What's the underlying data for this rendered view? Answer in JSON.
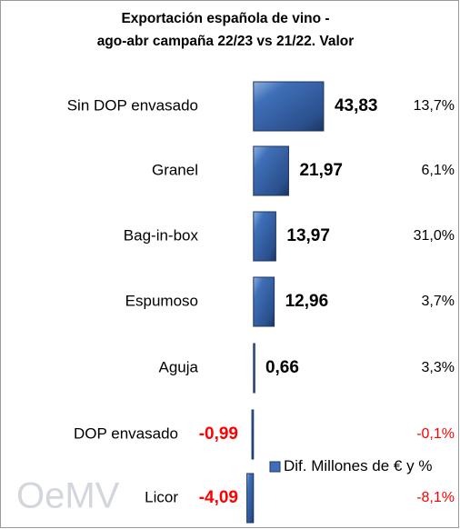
{
  "chart_data": {
    "type": "barh",
    "title": "Exportación española de vino - ago-abr campaña 22/23 vs 21/22. Valor",
    "categories": [
      "Sin DOP envasado",
      "Granel",
      "Bag-in-box",
      "Espumoso",
      "Aguja",
      "DOP envasado",
      "Licor"
    ],
    "series": [
      {
        "name": "Dif. Millones de € y %",
        "color": "#4472c4",
        "values": [
          43.83,
          21.97,
          13.97,
          12.96,
          0.66,
          -0.99,
          -4.09
        ],
        "value_labels": [
          "43,83",
          "21,97",
          "13,97",
          "12,96",
          "0,66",
          "-0,99",
          "-4,09"
        ]
      }
    ],
    "percentage_labels": [
      "13,7%",
      "6,1%",
      "31,0%",
      "3,7%",
      "3,3%",
      "-0,1%",
      "-8,1%"
    ],
    "xlim": [
      -5,
      45
    ],
    "watermark": "OeMV"
  }
}
